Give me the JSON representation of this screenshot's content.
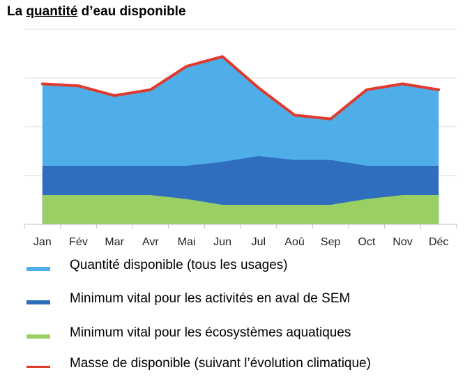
{
  "title": {
    "prefix": "La ",
    "underlined": "quantité",
    "suffix": " d’eau disponible"
  },
  "colors": {
    "available": "#4FADE8",
    "downstream": "#2F6DBE",
    "ecosystems": "#9ACF63",
    "line": "#E03A2E",
    "grid": "#DDDDDD"
  },
  "chart_data": {
    "type": "area",
    "title": "La quantité d’eau disponible",
    "categories": [
      "Jan",
      "Fév",
      "Mar",
      "Avr",
      "Mai",
      "Jun",
      "Jul",
      "Aoû",
      "Sep",
      "Oct",
      "Nov",
      "Déc"
    ],
    "ylim": [
      0,
      100
    ],
    "grid": true,
    "legend_position": "bottom",
    "series": [
      {
        "name": "Quantité disponible (tous les usages)",
        "kind": "area",
        "color": "#4FADE8",
        "values": [
          72,
          71,
          66,
          69,
          81,
          86,
          70,
          56,
          54,
          69,
          72,
          69
        ]
      },
      {
        "name": "Minimum vital pour les activités en aval de SEM",
        "kind": "area",
        "color": "#2F6DBE",
        "values": [
          30,
          30,
          30,
          30,
          30,
          32,
          35,
          33,
          33,
          30,
          30,
          30
        ]
      },
      {
        "name": "Minimum vital pour les écosystèmes aquatiques",
        "kind": "area",
        "color": "#9ACF63",
        "values": [
          15,
          15,
          15,
          15,
          13,
          10,
          10,
          10,
          10,
          13,
          15,
          15
        ]
      },
      {
        "name": "Masse de disponible (suivant l’évolution climatique)",
        "kind": "line",
        "color": "#E03A2E",
        "values": [
          72,
          71,
          66,
          69,
          81,
          86,
          70,
          56,
          54,
          69,
          72,
          69
        ]
      }
    ]
  },
  "legend": [
    {
      "label": "Quantité disponible (tous les usages)",
      "color": "#4FADE8",
      "kind": "area"
    },
    {
      "label": "Minimum vital pour les activités en aval de SEM",
      "color": "#2F6DBE",
      "kind": "area"
    },
    {
      "label": "Minimum vital pour les écosystèmes aquatiques",
      "color": "#9ACF63",
      "kind": "area"
    },
    {
      "label": "Masse de disponible (suivant l’évolution climatique)",
      "color": "#E03A2E",
      "kind": "line"
    }
  ]
}
